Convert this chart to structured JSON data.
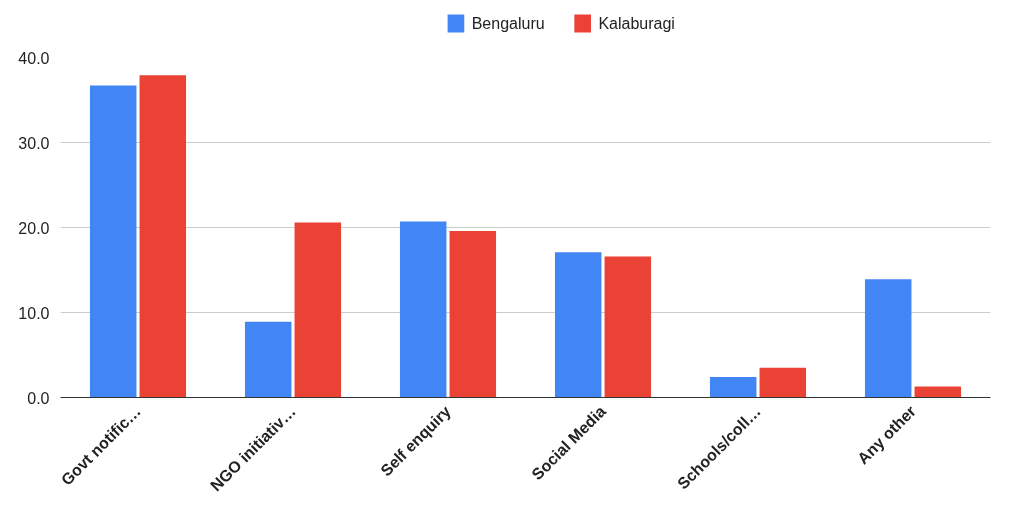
{
  "chart_data": {
    "type": "bar",
    "categories": [
      "Govt notific…",
      "NGO initiativ…",
      "Self enquiry",
      "Social Media",
      "Schools/coll…",
      "Any other"
    ],
    "series": [
      {
        "name": "Bengaluru",
        "color": "#4285f4",
        "values": [
          36.7,
          8.9,
          20.7,
          17.1,
          2.4,
          13.9
        ]
      },
      {
        "name": "Kalaburagi",
        "color": "#ea4335",
        "values": [
          37.9,
          20.6,
          19.6,
          16.6,
          3.5,
          1.3
        ]
      }
    ],
    "ylim": [
      0,
      40
    ],
    "yticks": [
      {
        "value": 0,
        "label": "0.0"
      },
      {
        "value": 10,
        "label": "10.0"
      },
      {
        "value": 20,
        "label": "20.0"
      },
      {
        "value": 30,
        "label": "30.0"
      },
      {
        "value": 40,
        "label": "40.0"
      }
    ],
    "grid": "y",
    "legend": "top"
  }
}
